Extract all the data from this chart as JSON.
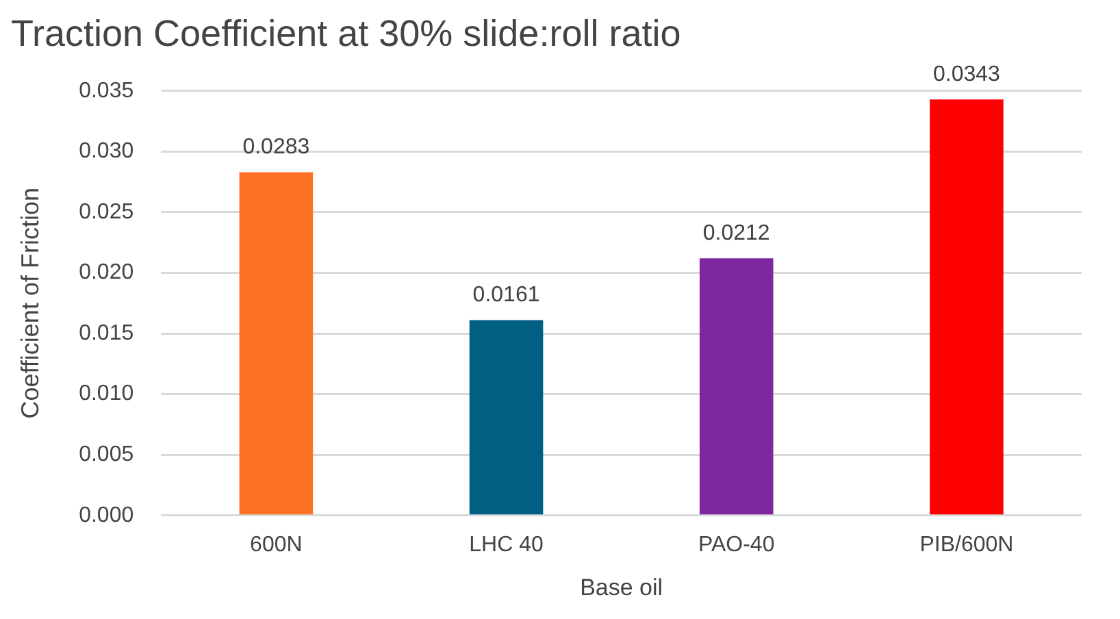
{
  "chart_data": {
    "type": "bar",
    "title": "Traction Coefficient at 30% slide:roll ratio",
    "xlabel": "Base oil",
    "ylabel": "Coefficient of Friction",
    "categories": [
      "600N",
      "LHC 40",
      "PAO-40",
      "PIB/600N"
    ],
    "values": [
      0.0283,
      0.0161,
      0.0212,
      0.0343
    ],
    "colors": [
      "#ff7127",
      "#005f83",
      "#7f27a0",
      "#ff0000"
    ],
    "ylim": [
      0,
      0.035
    ],
    "yticks": [
      {
        "value": 0,
        "label": "0.000"
      },
      {
        "value": 0.005,
        "label": "0.005"
      },
      {
        "value": 0.01,
        "label": "0.010"
      },
      {
        "value": 0.015,
        "label": "0.015"
      },
      {
        "value": 0.02,
        "label": "0.020"
      },
      {
        "value": 0.025,
        "label": "0.025"
      },
      {
        "value": 0.03,
        "label": "0.030"
      },
      {
        "value": 0.035,
        "label": "0.035"
      }
    ],
    "grid": "y",
    "data_labels": true,
    "legend": false
  }
}
